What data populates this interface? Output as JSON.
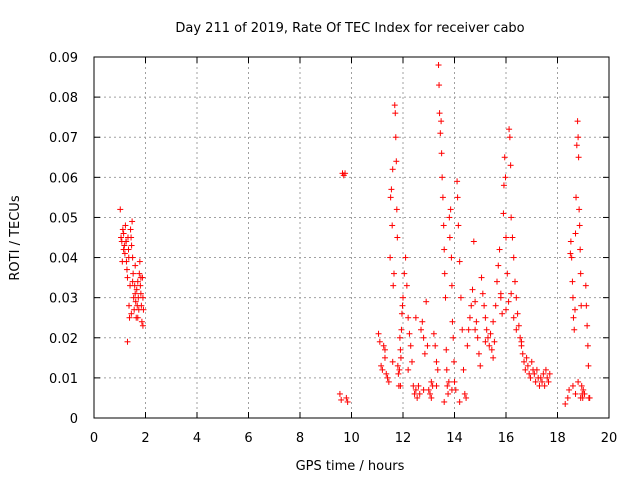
{
  "chart_data": {
    "type": "scatter",
    "title": "Day 211 of 2019, Rate Of TEC Index for receiver cabo",
    "xlabel": "GPS time / hours",
    "ylabel": "ROTI / TECUs",
    "xlim": [
      0,
      20
    ],
    "ylim": [
      0,
      0.09
    ],
    "xticks": [
      0,
      2,
      4,
      6,
      8,
      10,
      12,
      14,
      16,
      18,
      20
    ],
    "xtick_labels": [
      "0",
      "2",
      "4",
      "6",
      "8",
      "10",
      "12",
      "14",
      "16",
      "18",
      "20"
    ],
    "yticks": [
      0,
      0.01,
      0.02,
      0.03,
      0.04,
      0.05,
      0.06,
      0.07,
      0.08,
      0.09
    ],
    "ytick_labels": [
      "0",
      "0.01",
      "0.02",
      "0.03",
      "0.04",
      "0.05",
      "0.06",
      "0.07",
      "0.08",
      "0.09"
    ],
    "grid": true,
    "marker": "+",
    "color": "#ff0000",
    "series": [
      {
        "name": "ROTI",
        "points": [
          [
            1.02,
            0.052
          ],
          [
            1.05,
            0.045
          ],
          [
            1.08,
            0.044
          ],
          [
            1.1,
            0.039
          ],
          [
            1.12,
            0.047
          ],
          [
            1.15,
            0.046
          ],
          [
            1.18,
            0.043
          ],
          [
            1.2,
            0.041
          ],
          [
            1.22,
            0.048
          ],
          [
            1.24,
            0.044
          ],
          [
            1.26,
            0.039
          ],
          [
            1.28,
            0.037
          ],
          [
            1.3,
            0.035
          ],
          [
            1.32,
            0.045
          ],
          [
            1.34,
            0.042
          ],
          [
            1.36,
            0.028
          ],
          [
            1.38,
            0.025
          ],
          [
            1.3,
            0.019
          ],
          [
            1.4,
            0.033
          ],
          [
            1.42,
            0.047
          ],
          [
            1.44,
            0.045
          ],
          [
            1.46,
            0.043
          ],
          [
            1.48,
            0.049
          ],
          [
            1.5,
            0.04
          ],
          [
            1.52,
            0.036
          ],
          [
            1.54,
            0.03
          ],
          [
            1.56,
            0.027
          ],
          [
            1.58,
            0.033
          ],
          [
            1.6,
            0.031
          ],
          [
            1.62,
            0.029
          ],
          [
            1.64,
            0.025
          ],
          [
            1.66,
            0.032
          ],
          [
            1.68,
            0.028
          ],
          [
            1.7,
            0.034
          ],
          [
            1.72,
            0.03
          ],
          [
            1.74,
            0.027
          ],
          [
            1.76,
            0.036
          ],
          [
            1.78,
            0.039
          ],
          [
            1.8,
            0.033
          ],
          [
            1.82,
            0.031
          ],
          [
            1.84,
            0.028
          ],
          [
            1.86,
            0.024
          ],
          [
            1.88,
            0.035
          ],
          [
            1.9,
            0.03
          ],
          [
            1.92,
            0.027
          ],
          [
            1.45,
            0.026
          ],
          [
            1.5,
            0.034
          ],
          [
            1.35,
            0.04
          ],
          [
            1.25,
            0.044
          ],
          [
            1.15,
            0.042
          ],
          [
            1.6,
            0.038
          ],
          [
            1.7,
            0.025
          ],
          [
            1.82,
            0.035
          ],
          [
            1.9,
            0.023
          ],
          [
            9.55,
            0.006
          ],
          [
            9.65,
            0.061
          ],
          [
            9.7,
            0.0605
          ],
          [
            9.75,
            0.061
          ],
          [
            9.8,
            0.005
          ],
          [
            9.85,
            0.004
          ],
          [
            9.6,
            0.0045
          ],
          [
            11.05,
            0.021
          ],
          [
            11.1,
            0.019
          ],
          [
            11.15,
            0.013
          ],
          [
            11.2,
            0.012
          ],
          [
            11.25,
            0.018
          ],
          [
            11.3,
            0.015
          ],
          [
            11.35,
            0.011
          ],
          [
            11.4,
            0.01
          ],
          [
            11.45,
            0.009
          ],
          [
            11.5,
            0.04
          ],
          [
            11.52,
            0.055
          ],
          [
            11.55,
            0.057
          ],
          [
            11.58,
            0.048
          ],
          [
            11.6,
            0.062
          ],
          [
            11.62,
            0.033
          ],
          [
            11.65,
            0.036
          ],
          [
            11.68,
            0.078
          ],
          [
            11.7,
            0.076
          ],
          [
            11.72,
            0.07
          ],
          [
            11.74,
            0.064
          ],
          [
            11.76,
            0.052
          ],
          [
            11.78,
            0.045
          ],
          [
            11.8,
            0.013
          ],
          [
            11.82,
            0.011
          ],
          [
            11.84,
            0.008
          ],
          [
            11.86,
            0.012
          ],
          [
            11.88,
            0.02
          ],
          [
            11.9,
            0.017
          ],
          [
            11.92,
            0.015
          ],
          [
            11.94,
            0.022
          ],
          [
            11.96,
            0.026
          ],
          [
            11.98,
            0.028
          ],
          [
            12.0,
            0.03
          ],
          [
            12.05,
            0.036
          ],
          [
            12.1,
            0.04
          ],
          [
            12.15,
            0.033
          ],
          [
            12.2,
            0.025
          ],
          [
            12.25,
            0.021
          ],
          [
            12.3,
            0.018
          ],
          [
            12.35,
            0.014
          ],
          [
            12.4,
            0.008
          ],
          [
            12.45,
            0.006
          ],
          [
            12.5,
            0.007
          ],
          [
            12.55,
            0.005
          ],
          [
            12.6,
            0.008
          ],
          [
            12.65,
            0.006
          ],
          [
            12.7,
            0.022
          ],
          [
            12.75,
            0.024
          ],
          [
            12.8,
            0.02
          ],
          [
            12.85,
            0.016
          ],
          [
            12.9,
            0.029
          ],
          [
            12.95,
            0.018
          ],
          [
            13.0,
            0.007
          ],
          [
            13.05,
            0.006
          ],
          [
            13.1,
            0.009
          ],
          [
            13.15,
            0.008
          ],
          [
            13.2,
            0.021
          ],
          [
            13.25,
            0.018
          ],
          [
            13.3,
            0.014
          ],
          [
            13.35,
            0.012
          ],
          [
            13.38,
            0.088
          ],
          [
            13.4,
            0.083
          ],
          [
            13.42,
            0.076
          ],
          [
            13.45,
            0.071
          ],
          [
            13.48,
            0.074
          ],
          [
            13.5,
            0.066
          ],
          [
            13.52,
            0.06
          ],
          [
            13.55,
            0.055
          ],
          [
            13.58,
            0.048
          ],
          [
            13.6,
            0.042
          ],
          [
            13.62,
            0.036
          ],
          [
            13.65,
            0.03
          ],
          [
            13.68,
            0.017
          ],
          [
            13.7,
            0.012
          ],
          [
            13.72,
            0.008
          ],
          [
            13.75,
            0.006
          ],
          [
            13.78,
            0.009
          ],
          [
            13.8,
            0.05
          ],
          [
            13.82,
            0.045
          ],
          [
            13.85,
            0.052
          ],
          [
            13.88,
            0.04
          ],
          [
            13.9,
            0.033
          ],
          [
            13.92,
            0.024
          ],
          [
            13.95,
            0.02
          ],
          [
            13.98,
            0.014
          ],
          [
            14.0,
            0.009
          ],
          [
            14.05,
            0.007
          ],
          [
            14.1,
            0.059
          ],
          [
            14.12,
            0.055
          ],
          [
            14.15,
            0.048
          ],
          [
            14.2,
            0.039
          ],
          [
            14.25,
            0.03
          ],
          [
            14.3,
            0.022
          ],
          [
            14.35,
            0.012
          ],
          [
            14.4,
            0.006
          ],
          [
            14.45,
            0.005
          ],
          [
            11.3,
            0.017
          ],
          [
            11.6,
            0.014
          ],
          [
            11.9,
            0.008
          ],
          [
            12.2,
            0.012
          ],
          [
            12.5,
            0.025
          ],
          [
            12.8,
            0.007
          ],
          [
            13.1,
            0.005
          ],
          [
            13.3,
            0.008
          ],
          [
            13.6,
            0.004
          ],
          [
            13.9,
            0.007
          ],
          [
            14.2,
            0.004
          ],
          [
            14.5,
            0.018
          ],
          [
            14.55,
            0.022
          ],
          [
            14.6,
            0.025
          ],
          [
            14.65,
            0.028
          ],
          [
            14.7,
            0.032
          ],
          [
            14.75,
            0.044
          ],
          [
            14.8,
            0.029
          ],
          [
            14.85,
            0.024
          ],
          [
            14.9,
            0.02
          ],
          [
            14.95,
            0.016
          ],
          [
            15.0,
            0.013
          ],
          [
            15.05,
            0.035
          ],
          [
            15.1,
            0.031
          ],
          [
            15.15,
            0.028
          ],
          [
            15.2,
            0.025
          ],
          [
            15.25,
            0.022
          ],
          [
            15.3,
            0.02
          ],
          [
            15.35,
            0.018
          ],
          [
            15.4,
            0.021
          ],
          [
            15.45,
            0.017
          ],
          [
            15.5,
            0.015
          ],
          [
            15.55,
            0.019
          ],
          [
            15.6,
            0.028
          ],
          [
            15.65,
            0.034
          ],
          [
            15.7,
            0.038
          ],
          [
            15.75,
            0.042
          ],
          [
            15.8,
            0.031
          ],
          [
            15.85,
            0.026
          ],
          [
            15.9,
            0.051
          ],
          [
            15.92,
            0.058
          ],
          [
            15.95,
            0.065
          ],
          [
            15.98,
            0.06
          ],
          [
            16.0,
            0.045
          ],
          [
            16.05,
            0.036
          ],
          [
            16.1,
            0.029
          ],
          [
            16.12,
            0.072
          ],
          [
            16.15,
            0.07
          ],
          [
            16.18,
            0.063
          ],
          [
            16.2,
            0.05
          ],
          [
            16.25,
            0.045
          ],
          [
            16.3,
            0.04
          ],
          [
            16.35,
            0.034
          ],
          [
            16.4,
            0.03
          ],
          [
            16.45,
            0.026
          ],
          [
            16.5,
            0.023
          ],
          [
            16.55,
            0.02
          ],
          [
            16.6,
            0.018
          ],
          [
            16.65,
            0.016
          ],
          [
            16.7,
            0.014
          ],
          [
            16.75,
            0.012
          ],
          [
            16.8,
            0.015
          ],
          [
            16.85,
            0.013
          ],
          [
            16.9,
            0.011
          ],
          [
            16.95,
            0.01
          ],
          [
            17.0,
            0.014
          ],
          [
            17.05,
            0.012
          ],
          [
            17.1,
            0.011
          ],
          [
            17.15,
            0.009
          ],
          [
            17.2,
            0.012
          ],
          [
            17.25,
            0.01
          ],
          [
            17.3,
            0.008
          ],
          [
            17.35,
            0.01
          ],
          [
            17.4,
            0.009
          ],
          [
            17.45,
            0.011
          ],
          [
            17.5,
            0.008
          ],
          [
            17.55,
            0.012
          ],
          [
            17.6,
            0.01
          ],
          [
            17.65,
            0.009
          ],
          [
            17.7,
            0.011
          ],
          [
            16.0,
            0.027
          ],
          [
            16.2,
            0.031
          ],
          [
            16.4,
            0.022
          ],
          [
            16.6,
            0.019
          ],
          [
            15.5,
            0.024
          ],
          [
            15.2,
            0.019
          ],
          [
            14.8,
            0.022
          ],
          [
            15.8,
            0.03
          ],
          [
            16.3,
            0.025
          ],
          [
            18.3,
            0.0035
          ],
          [
            18.4,
            0.005
          ],
          [
            18.45,
            0.007
          ],
          [
            18.5,
            0.041
          ],
          [
            18.52,
            0.044
          ],
          [
            18.55,
            0.04
          ],
          [
            18.58,
            0.034
          ],
          [
            18.6,
            0.03
          ],
          [
            18.62,
            0.025
          ],
          [
            18.65,
            0.022
          ],
          [
            18.68,
            0.027
          ],
          [
            18.7,
            0.046
          ],
          [
            18.72,
            0.055
          ],
          [
            18.75,
            0.068
          ],
          [
            18.78,
            0.074
          ],
          [
            18.8,
            0.07
          ],
          [
            18.82,
            0.065
          ],
          [
            18.84,
            0.052
          ],
          [
            18.86,
            0.048
          ],
          [
            18.88,
            0.042
          ],
          [
            18.9,
            0.036
          ],
          [
            18.92,
            0.028
          ],
          [
            18.94,
            0.008
          ],
          [
            18.96,
            0.006
          ],
          [
            18.98,
            0.005
          ],
          [
            19.0,
            0.007
          ],
          [
            19.05,
            0.006
          ],
          [
            19.1,
            0.033
          ],
          [
            19.12,
            0.028
          ],
          [
            19.15,
            0.023
          ],
          [
            19.18,
            0.018
          ],
          [
            19.2,
            0.013
          ],
          [
            19.22,
            0.005
          ],
          [
            19.25,
            0.005
          ],
          [
            18.6,
            0.008
          ],
          [
            18.7,
            0.006
          ],
          [
            18.8,
            0.009
          ],
          [
            18.9,
            0.005
          ]
        ]
      }
    ]
  }
}
